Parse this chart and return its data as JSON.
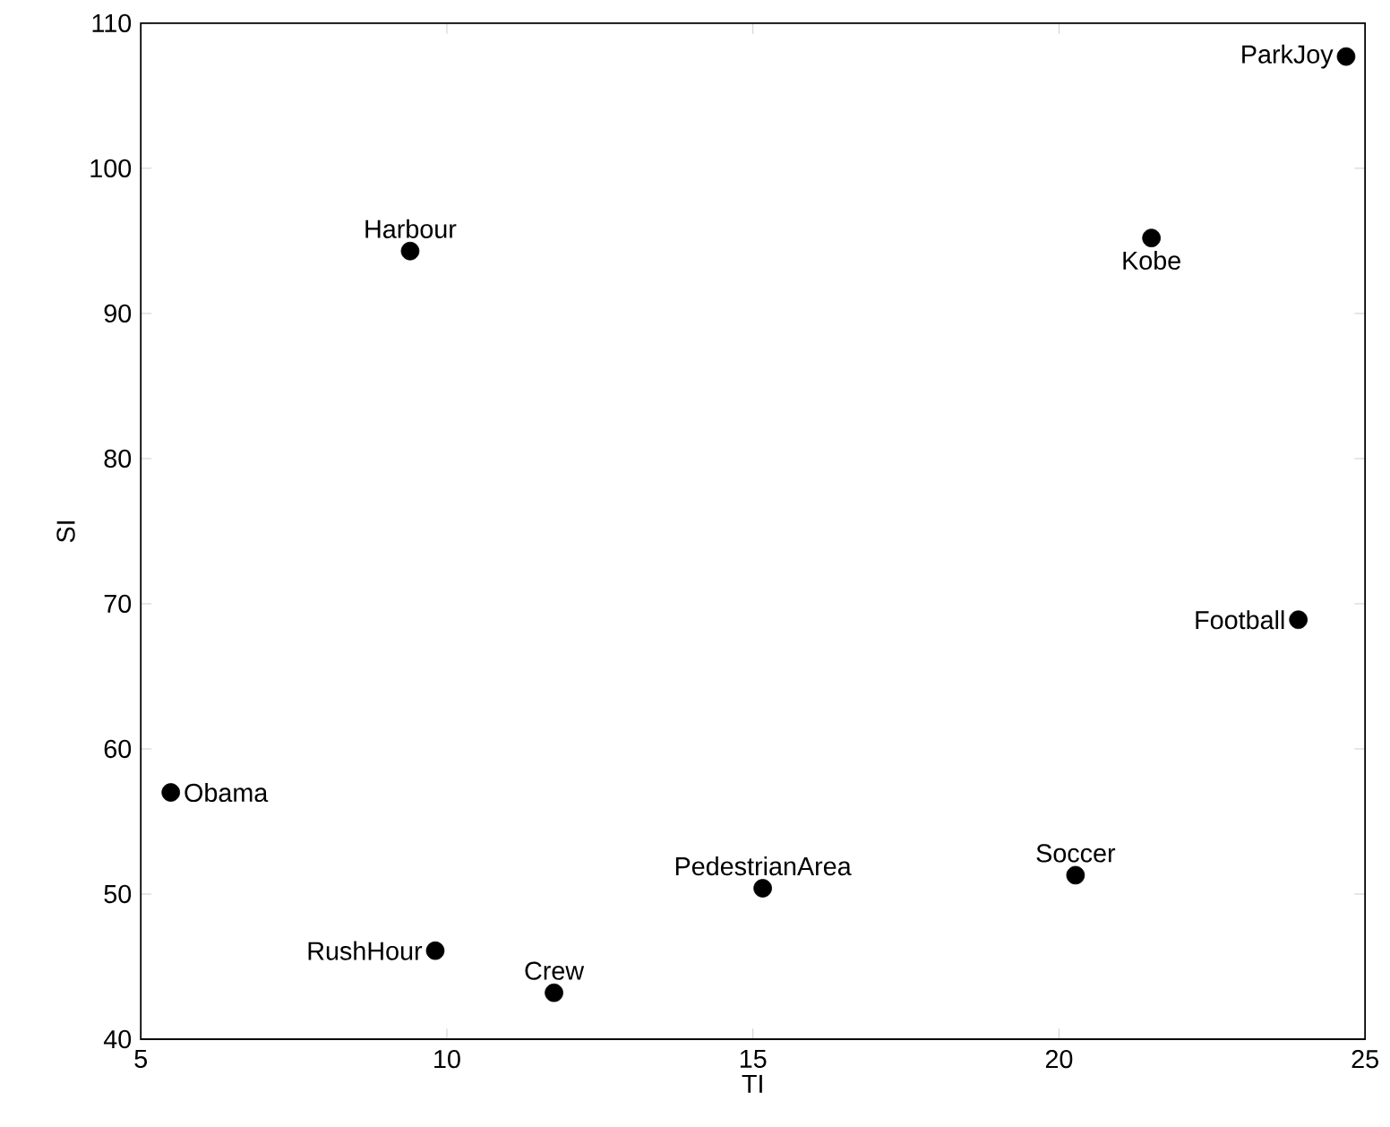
{
  "chart_data": {
    "type": "scatter",
    "xlabel": "TI",
    "ylabel": "SI",
    "x": [
      5.49,
      9.4,
      9.81,
      11.75,
      15.16,
      20.27,
      21.51,
      23.91,
      24.69
    ],
    "values": [
      57.0,
      94.3,
      46.1,
      43.2,
      50.4,
      51.3,
      95.2,
      68.9,
      107.7
    ],
    "color": "#000000",
    "marker": "circle",
    "xlim": [
      5,
      25
    ],
    "xticks": [
      5,
      10,
      15,
      20,
      25
    ],
    "ylim": [
      40,
      110
    ],
    "yticks": [
      40,
      50,
      60,
      70,
      80,
      90,
      100,
      110
    ],
    "annotations": [
      {
        "text": "Obama",
        "x": 5.49,
        "y": 57.0
      },
      {
        "text": "Harbour",
        "x": 9.4,
        "y": 94.3
      },
      {
        "text": "RushHour",
        "x": 9.81,
        "y": 46.1
      },
      {
        "text": "Crew",
        "x": 11.75,
        "y": 43.2
      },
      {
        "text": "PedestrianArea",
        "x": 15.16,
        "y": 50.4
      },
      {
        "text": "Soccer",
        "x": 20.27,
        "y": 51.3
      },
      {
        "text": "Kobe",
        "x": 21.51,
        "y": 95.2
      },
      {
        "text": "Football",
        "x": 23.91,
        "y": 68.9
      },
      {
        "text": "ParkJoy",
        "x": 24.69,
        "y": 107.7
      }
    ]
  }
}
